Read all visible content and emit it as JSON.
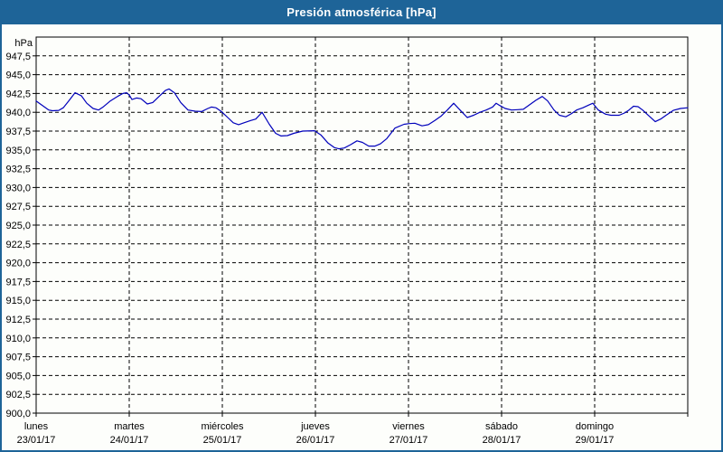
{
  "title": "Presión atmosférica [hPa]",
  "colors": {
    "titlebar_bg": "#1e6498",
    "frame_border": "#1e6498",
    "background": "#fdfefb",
    "grid": "#000000",
    "axis": "#000000",
    "line": "#0000bb",
    "title_text": "#ffffff",
    "label_text": "#000000"
  },
  "chart_data": {
    "type": "line",
    "title": "Presión atmosférica [hPa]",
    "ylabel": "hPa",
    "ylim": [
      900,
      950
    ],
    "ytick_step": 2.5,
    "ytick_labels": [
      "947,5",
      "945,0",
      "942,5",
      "940,0",
      "937,5",
      "935,0",
      "932,5",
      "930,0",
      "927,5",
      "925,0",
      "922,5",
      "920,0",
      "917,5",
      "915,0",
      "912,5",
      "910,0",
      "907,5",
      "905,0",
      "902,5",
      "900,0"
    ],
    "grid": "dashed",
    "legend": "none",
    "x_days": [
      {
        "name": "lunes",
        "date": "23/01/17"
      },
      {
        "name": "martes",
        "date": "24/01/17"
      },
      {
        "name": "miércoles",
        "date": "25/01/17"
      },
      {
        "name": "jueves",
        "date": "26/01/17"
      },
      {
        "name": "viernes",
        "date": "27/01/17"
      },
      {
        "name": "sábado",
        "date": "28/01/17"
      },
      {
        "name": "domingo",
        "date": "29/01/17"
      }
    ],
    "series": [
      {
        "name": "Presión atmosférica",
        "x_unit": "days_from_start",
        "points": [
          [
            0.0,
            941.5
          ],
          [
            0.068,
            940.9
          ],
          [
            0.136,
            940.3
          ],
          [
            0.175,
            940.2
          ],
          [
            0.243,
            940.25
          ],
          [
            0.291,
            940.6
          ],
          [
            0.35,
            941.5
          ],
          [
            0.417,
            942.6
          ],
          [
            0.485,
            942.2
          ],
          [
            0.544,
            941.2
          ],
          [
            0.612,
            940.5
          ],
          [
            0.67,
            940.3
          ],
          [
            0.718,
            940.7
          ],
          [
            0.796,
            941.5
          ],
          [
            0.874,
            942.1
          ],
          [
            0.932,
            942.5
          ],
          [
            0.971,
            942.6
          ],
          [
            1.0,
            942.3
          ],
          [
            1.029,
            941.7
          ],
          [
            1.078,
            941.9
          ],
          [
            1.126,
            941.8
          ],
          [
            1.194,
            941.1
          ],
          [
            1.252,
            941.3
          ],
          [
            1.32,
            942.1
          ],
          [
            1.388,
            942.9
          ],
          [
            1.427,
            943.1
          ],
          [
            1.485,
            942.6
          ],
          [
            1.553,
            941.3
          ],
          [
            1.631,
            940.3
          ],
          [
            1.709,
            940.15
          ],
          [
            1.777,
            940.1
          ],
          [
            1.845,
            940.5
          ],
          [
            1.883,
            940.7
          ],
          [
            1.932,
            940.6
          ],
          [
            1.99,
            940.1
          ],
          [
            2.058,
            939.3
          ],
          [
            2.117,
            938.6
          ],
          [
            2.175,
            938.35
          ],
          [
            2.233,
            938.6
          ],
          [
            2.301,
            938.9
          ],
          [
            2.359,
            939.1
          ],
          [
            2.427,
            940.0
          ],
          [
            2.505,
            938.4
          ],
          [
            2.573,
            937.2
          ],
          [
            2.631,
            936.85
          ],
          [
            2.699,
            936.9
          ],
          [
            2.767,
            937.2
          ],
          [
            2.864,
            937.5
          ],
          [
            2.99,
            937.55
          ],
          [
            3.058,
            937.0
          ],
          [
            3.136,
            935.9
          ],
          [
            3.204,
            935.3
          ],
          [
            3.252,
            935.15
          ],
          [
            3.311,
            935.25
          ],
          [
            3.379,
            935.7
          ],
          [
            3.447,
            936.2
          ],
          [
            3.505,
            936.0
          ],
          [
            3.573,
            935.5
          ],
          [
            3.641,
            935.5
          ],
          [
            3.699,
            935.8
          ],
          [
            3.767,
            936.5
          ],
          [
            3.854,
            937.9
          ],
          [
            3.951,
            938.4
          ],
          [
            4.01,
            938.5
          ],
          [
            4.068,
            938.55
          ],
          [
            4.146,
            938.2
          ],
          [
            4.214,
            938.35
          ],
          [
            4.282,
            938.9
          ],
          [
            4.35,
            939.5
          ],
          [
            4.417,
            940.3
          ],
          [
            4.485,
            941.2
          ],
          [
            4.553,
            940.3
          ],
          [
            4.631,
            939.3
          ],
          [
            4.699,
            939.6
          ],
          [
            4.767,
            940.0
          ],
          [
            4.835,
            940.3
          ],
          [
            4.903,
            940.7
          ],
          [
            4.942,
            941.2
          ],
          [
            4.981,
            940.9
          ],
          [
            5.039,
            940.5
          ],
          [
            5.107,
            940.3
          ],
          [
            5.175,
            940.35
          ],
          [
            5.233,
            940.4
          ],
          [
            5.301,
            941.0
          ],
          [
            5.369,
            941.6
          ],
          [
            5.437,
            942.1
          ],
          [
            5.495,
            941.5
          ],
          [
            5.563,
            940.3
          ],
          [
            5.621,
            939.6
          ],
          [
            5.689,
            939.4
          ],
          [
            5.748,
            939.8
          ],
          [
            5.806,
            940.3
          ],
          [
            5.874,
            940.6
          ],
          [
            5.942,
            941.0
          ],
          [
            5.981,
            941.2
          ],
          [
            6.039,
            940.3
          ],
          [
            6.117,
            939.75
          ],
          [
            6.175,
            939.6
          ],
          [
            6.262,
            939.6
          ],
          [
            6.32,
            939.9
          ],
          [
            6.369,
            940.3
          ],
          [
            6.417,
            940.8
          ],
          [
            6.466,
            940.75
          ],
          [
            6.515,
            940.3
          ],
          [
            6.563,
            939.75
          ],
          [
            6.65,
            938.75
          ],
          [
            6.709,
            939.1
          ],
          [
            6.767,
            939.6
          ],
          [
            6.845,
            940.25
          ],
          [
            6.922,
            940.5
          ],
          [
            7.0,
            940.6
          ]
        ]
      }
    ]
  }
}
